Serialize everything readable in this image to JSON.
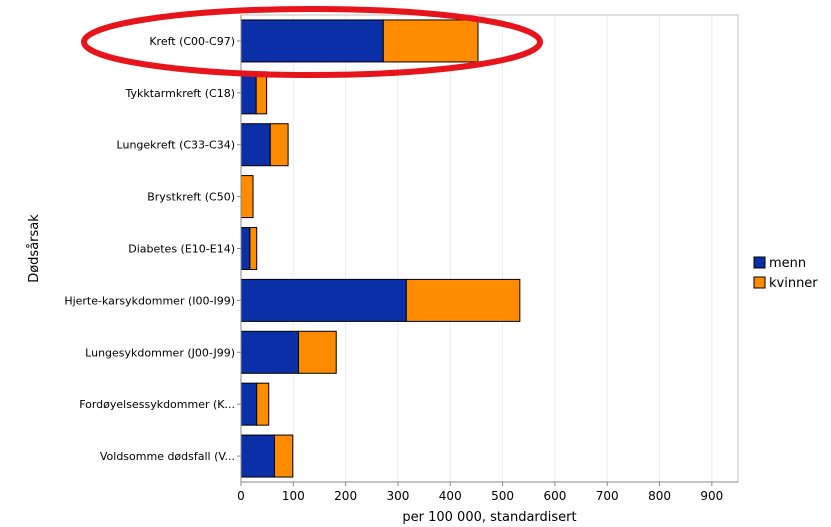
{
  "chart_data": {
    "type": "bar",
    "orientation": "horizontal",
    "stacked": true,
    "categories": [
      "Kreft (C00-C97)",
      "Tykktarmkreft (C18)",
      "Lungekreft (C33-C34)",
      "Brystkreft (C50)",
      "Diabetes (E10-E14)",
      "Hjerte-karsykdommer (I00-I99)",
      "Lungesykdommer (J00-J99)",
      "Fordøyelsessykdommer (K...",
      "Voldsomme dødsfall (V..."
    ],
    "series": [
      {
        "name": "menn",
        "color": "#0b2fa6",
        "values": [
          272,
          29,
          56,
          0,
          17,
          316,
          110,
          30,
          64
        ]
      },
      {
        "name": "kvinner",
        "color": "#ff8c00",
        "values": [
          181,
          20,
          34,
          23,
          13,
          217,
          72,
          23,
          35
        ]
      }
    ],
    "xlabel": "per 100 000, standardisert",
    "ylabel": "Dødsårsak",
    "xlim": [
      0,
      950
    ],
    "xticks": [
      "0",
      "100",
      "200",
      "300",
      "400",
      "500",
      "600",
      "700",
      "800",
      "900"
    ],
    "grid": "vertical",
    "legend_position": "right",
    "highlight": {
      "category_index": 0,
      "color": "#e8141b",
      "shape": "ellipse"
    }
  }
}
